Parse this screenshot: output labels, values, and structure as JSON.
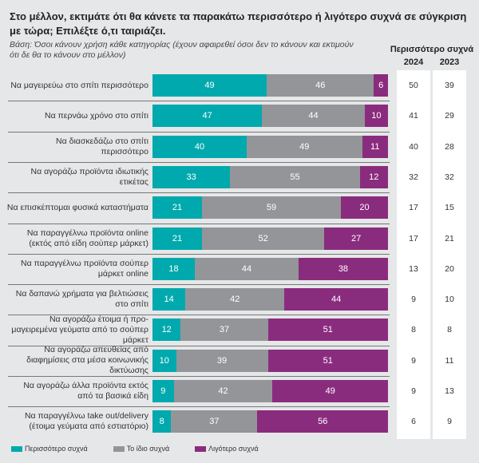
{
  "chart_data": {
    "type": "bar",
    "orientation": "horizontal",
    "stacked": true,
    "title": "Στο μέλλον, εκτιμάτε ότι θα κάνετε τα παρακάτω περισσότερο ή λιγότερο συχνά σε σύγκριση με τώρα; Επιλέξτε ό,τι ταιριάζει.",
    "subtitle": "Βάση: Όσοι κάνουν χρήση κάθε κατηγορίας (έχουν αφαιρεθεί όσοι δεν το κάνουν και εκτιμούν ότι δε θα το κάνουν στο μέλλον)",
    "categories": [
      "Να μαγειρεύω στο σπίτι περισσότερο",
      "Να περνάω χρόνο στο σπίτι",
      "Να διασκεδάζω στο σπίτι περισσότερο",
      "Να αγοράζω προϊόντα ιδιωτικής ετικέτας",
      "Να επισκέπτομαι φυσικά καταστήματα",
      "Να παραγγέλνω προϊόντα online (εκτός από είδη σούπερ μάρκετ)",
      "Να παραγγέλνω προϊόντα σούπερ μάρκετ online",
      "Να δαπανώ χρήματα για βελτιώσεις στο σπίτι",
      "Να αγοράζω έτοιμα ή προ-μαγειρεμένα γεύματα από το σούπερ μάρκετ",
      "Να αγοράζω απευθείας από διαφημίσεις στα μέσα κοινωνικής δικτύωσης",
      "Να αγοράζω άλλα προϊόντα εκτός από τα βασικά είδη",
      "Να παραγγέλνω take out/delivery (έτοιμα γεύματα από εστιατόριο)"
    ],
    "series": [
      {
        "name": "Περισσότερο συχνά",
        "color": "#00a9ad",
        "values": [
          49,
          47,
          40,
          33,
          21,
          21,
          18,
          14,
          12,
          10,
          9,
          8
        ]
      },
      {
        "name": "Το ίδιο συχνά",
        "color": "#949599",
        "values": [
          46,
          44,
          49,
          55,
          59,
          52,
          44,
          42,
          37,
          39,
          42,
          37
        ]
      },
      {
        "name": "Λιγότερο συχνά",
        "color": "#8a2c7e",
        "values": [
          6,
          10,
          11,
          12,
          20,
          27,
          38,
          44,
          51,
          51,
          49,
          56
        ]
      }
    ],
    "table": {
      "header": "Περισσότερο συχνά",
      "columns": [
        "2024",
        "2023"
      ],
      "values_2024": [
        50,
        41,
        40,
        32,
        17,
        17,
        13,
        9,
        8,
        9,
        9,
        6
      ],
      "values_2023": [
        39,
        29,
        28,
        32,
        15,
        21,
        20,
        10,
        8,
        11,
        13,
        9
      ]
    },
    "legend": "bottom-left"
  }
}
